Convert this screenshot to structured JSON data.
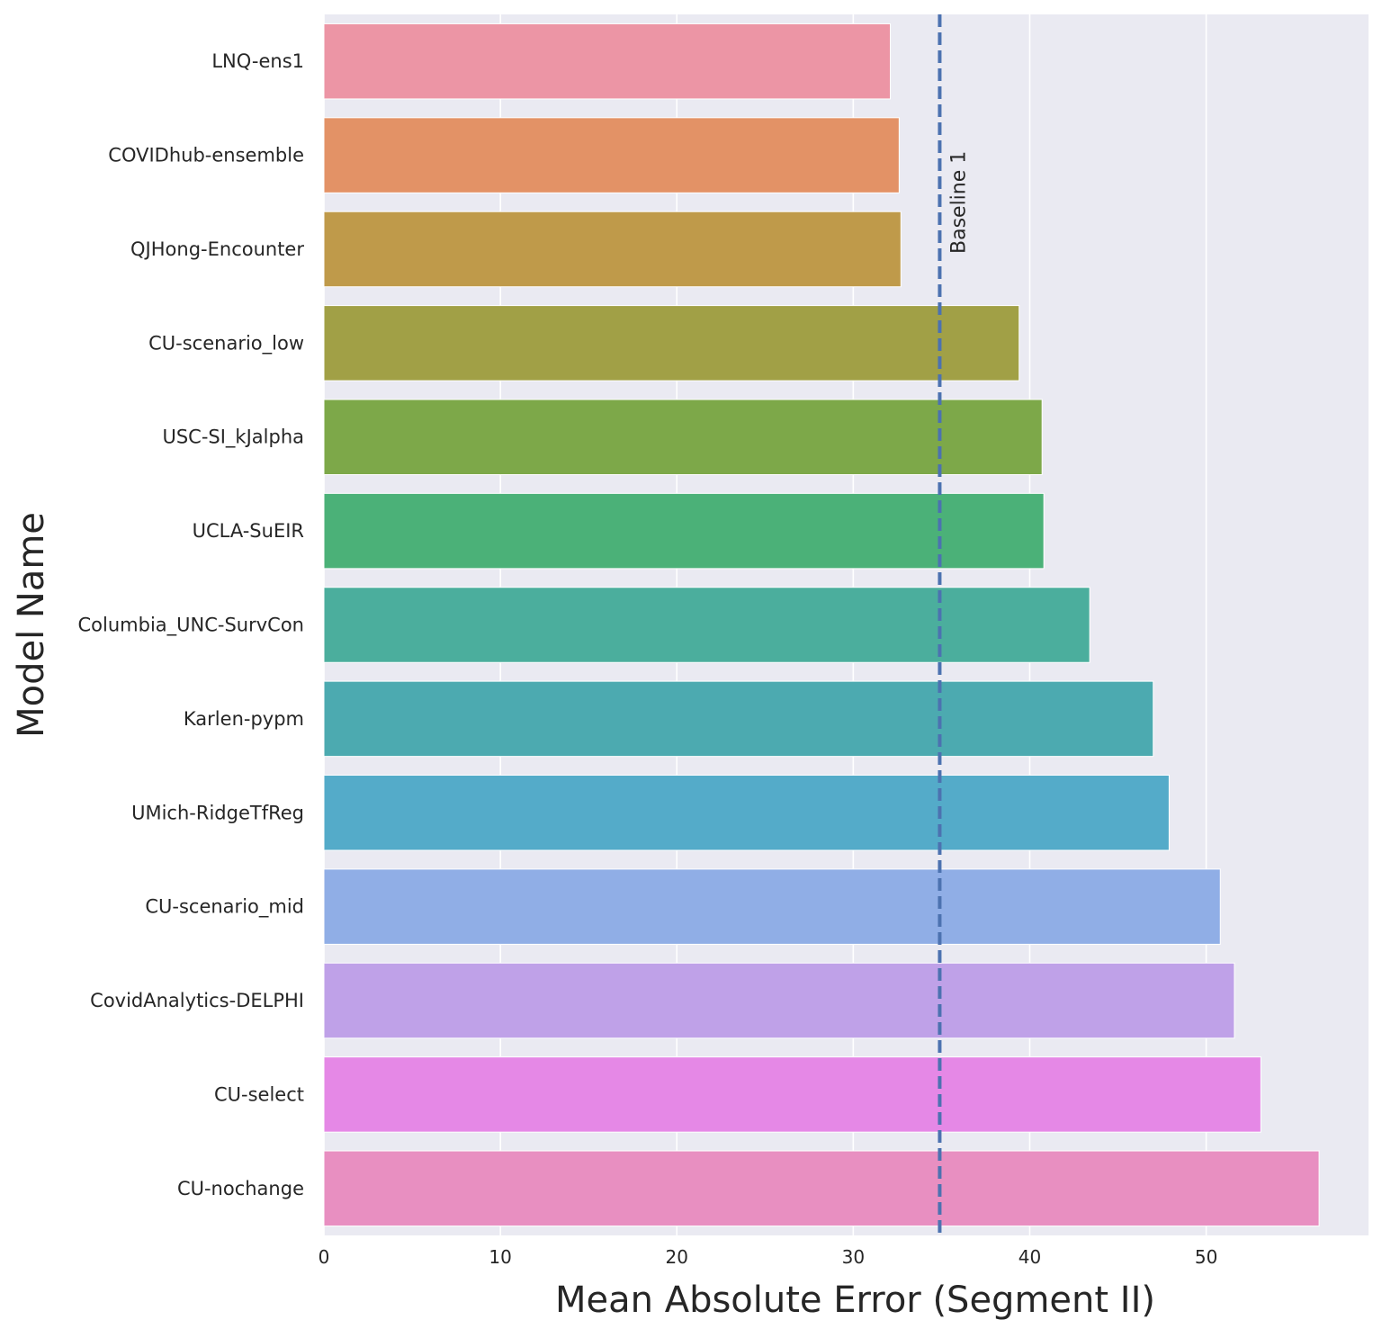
{
  "chart_data": {
    "type": "bar",
    "orientation": "horizontal",
    "xlabel": "Mean Absolute Error (Segment II)",
    "ylabel": "Model Name",
    "xlim": [
      0,
      59.2
    ],
    "xticks": [
      0,
      10,
      20,
      30,
      40,
      50
    ],
    "grid": true,
    "background": "#eaeaf2",
    "categories": [
      "LNQ-ens1",
      "COVIDhub-ensemble",
      "QJHong-Encounter",
      "CU-scenario_low",
      "USC-SI_kJalpha",
      "UCLA-SuEIR",
      "Columbia_UNC-SurvCon",
      "Karlen-pypm",
      "UMich-RidgeTfReg",
      "CU-scenario_mid",
      "CovidAnalytics-DELPHI",
      "CU-select",
      "CU-nochange"
    ],
    "values": [
      32.1,
      32.6,
      32.7,
      39.4,
      40.7,
      40.8,
      43.4,
      47.0,
      47.9,
      50.8,
      51.6,
      53.1,
      56.4
    ],
    "colors": [
      "#ec95a5",
      "#e39266",
      "#bf9a4a",
      "#a1a046",
      "#7da849",
      "#4bb178",
      "#4bae9d",
      "#4caab0",
      "#54abc9",
      "#90aee6",
      "#bfa1e8",
      "#e588e6",
      "#e88fc1"
    ],
    "reference_line": {
      "label": "Baseline 1",
      "value": 34.9,
      "color": "#4c72b0",
      "style": "dashed"
    }
  }
}
